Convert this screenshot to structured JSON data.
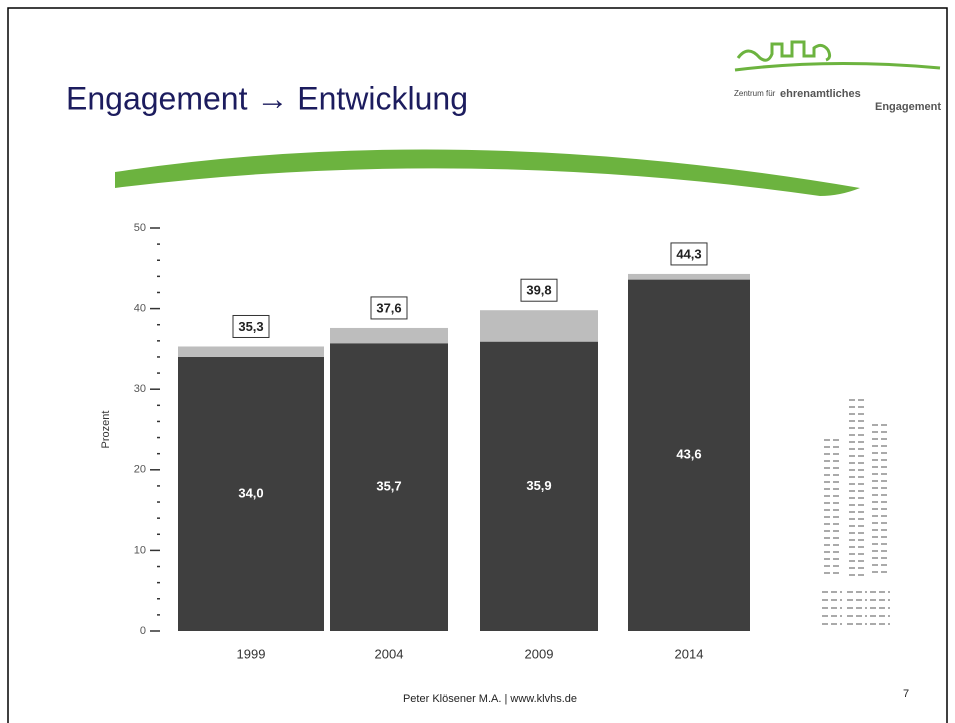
{
  "header": {
    "title": "Engagement → Entwicklung",
    "logo_line1": "Zentrum für",
    "logo_line2": "ehrenamtliches",
    "logo_line3": "Engagement"
  },
  "chart_data": {
    "type": "stacked_bar",
    "ylabel": "Prozent",
    "categories": [
      "1999",
      "2004",
      "2009",
      "2014"
    ],
    "series": [
      {
        "color": "#3f3f3f",
        "values": [
          34.0,
          35.7,
          35.9,
          43.6
        ],
        "value_labels": [
          "34,0",
          "35,7",
          "35,9",
          "43,6"
        ]
      },
      {
        "color": "#bdbdbd",
        "values": [
          1.3,
          1.9,
          3.9,
          0.7
        ]
      }
    ],
    "totals": [
      35.3,
      37.6,
      39.8,
      44.3
    ],
    "total_labels": [
      "35,3",
      "37,6",
      "39,8",
      "44,3"
    ],
    "ylim": [
      0,
      50
    ],
    "yticks": [
      0,
      10,
      20,
      30,
      40,
      50
    ],
    "minor_yticks": [
      2,
      4,
      6,
      8,
      12,
      14,
      16,
      18,
      22,
      24,
      26,
      28,
      32,
      34,
      36,
      38,
      42,
      44,
      46,
      48
    ]
  },
  "footer": {
    "text": "Peter Klösener M.A. | www.klvhs.de",
    "page": "7"
  }
}
